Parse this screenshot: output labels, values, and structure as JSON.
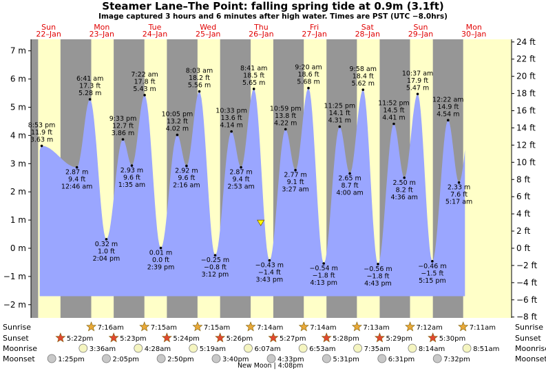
{
  "header": {
    "title": "Steamer Lane–The Point: falling  spring tide at 0.9m (3.1ft)",
    "subtitle": "Image captured 3 hours and 6 minutes after high water. Times are PST (UTC −8.0hrs)"
  },
  "colors": {
    "day_bg": "#ffffc8",
    "night_bg": "#969696",
    "water": "#9aa6ff",
    "day_label": "#e00000"
  },
  "chart_data": {
    "type": "area",
    "title": "Steamer Lane–The Point: falling  spring tide at 0.9m (3.1ft)",
    "y_left_unit": "m",
    "y_right_unit": "ft",
    "ylim_m": [
      -2.3,
      7.4
    ],
    "yticks_m": [
      -2,
      -1,
      0,
      1,
      2,
      3,
      4,
      5,
      6,
      7
    ],
    "yticks_ft": [
      -8,
      -6,
      -4,
      -2,
      0,
      2,
      4,
      6,
      8,
      10,
      12,
      14,
      16,
      18,
      20,
      22,
      24
    ],
    "current_level_m": 0.9,
    "days": [
      {
        "name": "Sun",
        "date": "22–Jan"
      },
      {
        "name": "Mon",
        "date": "23–Jan"
      },
      {
        "name": "Tue",
        "date": "24–Jan"
      },
      {
        "name": "Wed",
        "date": "25–Jan"
      },
      {
        "name": "Thu",
        "date": "26–Jan"
      },
      {
        "name": "Fri",
        "date": "27–Jan"
      },
      {
        "name": "Sat",
        "date": "28–Jan"
      },
      {
        "name": "Sun",
        "date": "29–Jan"
      },
      {
        "name": "Mon",
        "date": "30–Jan"
      }
    ],
    "tides": [
      {
        "hours": 8.88,
        "m": 3.63,
        "lines": [
          "8:53 pm",
          "11.9 ft",
          "3.63 m"
        ],
        "pos": "above"
      },
      {
        "hours": 24.77,
        "m": 2.87,
        "lines": [
          "2.87 m",
          "9.4 ft",
          "12:46 am"
        ],
        "pos": "below"
      },
      {
        "hours": 30.68,
        "m": 5.28,
        "lines": [
          "6:41 am",
          "17.3 ft",
          "5.28 m"
        ],
        "pos": "above"
      },
      {
        "hours": 38.07,
        "m": 0.32,
        "lines": [
          "0.32 m",
          "1.0 ft",
          "2:04 pm"
        ],
        "pos": "below"
      },
      {
        "hours": 45.55,
        "m": 3.86,
        "lines": [
          "9:33 pm",
          "12.7 ft",
          "3.86 m"
        ],
        "pos": "above"
      },
      {
        "hours": 49.58,
        "m": 2.93,
        "lines": [
          "2.93 m",
          "9.6 ft",
          "1:35 am"
        ],
        "pos": "below"
      },
      {
        "hours": 55.37,
        "m": 5.43,
        "lines": [
          "7:22 am",
          "17.8 ft",
          "5.43 m"
        ],
        "pos": "above"
      },
      {
        "hours": 62.65,
        "m": 0.01,
        "lines": [
          "0.01 m",
          "0.0 ft",
          "2:39 pm"
        ],
        "pos": "below"
      },
      {
        "hours": 70.08,
        "m": 4.02,
        "lines": [
          "10:05 pm",
          "13.2 ft",
          "4.02 m"
        ],
        "pos": "above"
      },
      {
        "hours": 74.27,
        "m": 2.92,
        "lines": [
          "2.92 m",
          "9.6 ft",
          "2:16 am"
        ],
        "pos": "below"
      },
      {
        "hours": 80.05,
        "m": 5.56,
        "lines": [
          "8:03 am",
          "18.2 ft",
          "5.56 m"
        ],
        "pos": "above"
      },
      {
        "hours": 87.2,
        "m": -0.25,
        "lines": [
          "−0.25 m",
          "−0.8 ft",
          "3:12 pm"
        ],
        "pos": "below"
      },
      {
        "hours": 94.55,
        "m": 4.14,
        "lines": [
          "10:33 pm",
          "13.6 ft",
          "4.14 m"
        ],
        "pos": "above"
      },
      {
        "hours": 98.88,
        "m": 2.87,
        "lines": [
          "2.87 m",
          "9.4 ft",
          "2:53 am"
        ],
        "pos": "below"
      },
      {
        "hours": 104.68,
        "m": 5.65,
        "lines": [
          "8:41 am",
          "18.5 ft",
          "5.65 m"
        ],
        "pos": "above"
      },
      {
        "hours": 111.72,
        "m": -0.43,
        "lines": [
          "−0.43 m",
          "−1.4 ft",
          "3:43 pm"
        ],
        "pos": "below"
      },
      {
        "hours": 118.98,
        "m": 4.22,
        "lines": [
          "10:59 pm",
          "13.8 ft",
          "4.22 m"
        ],
        "pos": "above"
      },
      {
        "hours": 123.45,
        "m": 2.77,
        "lines": [
          "2.77 m",
          "9.1 ft",
          "3:27 am"
        ],
        "pos": "below"
      },
      {
        "hours": 129.33,
        "m": 5.68,
        "lines": [
          "9:20 am",
          "18.6 ft",
          "5.68 m"
        ],
        "pos": "above"
      },
      {
        "hours": 136.22,
        "m": -0.54,
        "lines": [
          "−0.54 m",
          "−1.8 ft",
          "4:13 pm"
        ],
        "pos": "below"
      },
      {
        "hours": 143.42,
        "m": 4.31,
        "lines": [
          "11:25 pm",
          "14.1 ft",
          "4.31 m"
        ],
        "pos": "above"
      },
      {
        "hours": 148.0,
        "m": 2.65,
        "lines": [
          "2.65 m",
          "8.7 ft",
          "4:00 am"
        ],
        "pos": "below"
      },
      {
        "hours": 153.97,
        "m": 5.62,
        "lines": [
          "9:58 am",
          "18.4 ft",
          "5.62 m"
        ],
        "pos": "above"
      },
      {
        "hours": 160.72,
        "m": -0.56,
        "lines": [
          "−0.56 m",
          "−1.8 ft",
          "4:43 pm"
        ],
        "pos": "below"
      },
      {
        "hours": 167.87,
        "m": 4.41,
        "lines": [
          "11:52 pm",
          "14.5 ft",
          "4.41 m"
        ],
        "pos": "above"
      },
      {
        "hours": 172.6,
        "m": 2.5,
        "lines": [
          "2.50 m",
          "8.2 ft",
          "4:36 am"
        ],
        "pos": "below"
      },
      {
        "hours": 178.62,
        "m": 5.47,
        "lines": [
          "10:37 am",
          "17.9 ft",
          "5.47 m"
        ],
        "pos": "above"
      },
      {
        "hours": 185.25,
        "m": -0.46,
        "lines": [
          "−0.46 m",
          "−1.5 ft",
          "5:15 pm"
        ],
        "pos": "below"
      },
      {
        "hours": 192.37,
        "m": 4.54,
        "lines": [
          "12:22 am",
          "14.9 ft",
          "4.54 m"
        ],
        "pos": "above"
      },
      {
        "hours": 197.28,
        "m": 2.33,
        "lines": [
          "2.33 m",
          "7.6 ft",
          "5:17 am"
        ],
        "pos": "below"
      }
    ],
    "sunrise": [
      "7:16am",
      "7:15am",
      "7:15am",
      "7:14am",
      "7:14am",
      "7:13am",
      "7:12am",
      "7:11am"
    ],
    "sunset": [
      "5:22pm",
      "5:23pm",
      "5:24pm",
      "5:26pm",
      "5:27pm",
      "5:28pm",
      "5:29pm",
      "5:30pm"
    ],
    "moonrise": [
      "3:36am",
      "4:28am",
      "5:19am",
      "6:07am",
      "6:53am",
      "7:35am",
      "8:14am",
      "8:51am"
    ],
    "moonset": [
      "1:25pm",
      "2:05pm",
      "2:50pm",
      "3:40pm",
      "4:33pm",
      "5:31pm",
      "6:31pm",
      "7:32pm"
    ],
    "rows": {
      "sunrise": "Sunrise",
      "sunset": "Sunset",
      "moonrise": "Moonrise",
      "moonset": "Moonset"
    },
    "moon_phase": "New Moon | 4:08pm"
  }
}
